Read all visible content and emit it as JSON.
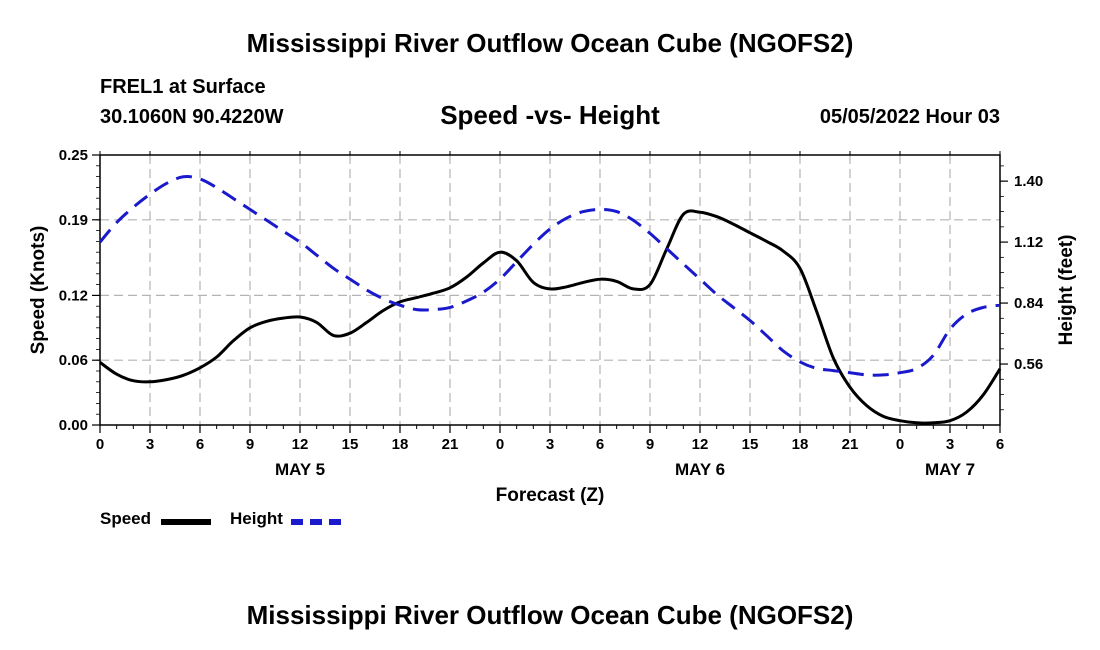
{
  "page": {
    "title_top": "Mississippi River Outflow Ocean Cube (NGOFS2)",
    "title_bottom": "Mississippi River Outflow Ocean Cube (NGOFS2)"
  },
  "header": {
    "station": "FREL1 at Surface",
    "coords": "30.1060N  90.4220W",
    "subtitle": "Speed -vs- Height",
    "datetime": "05/05/2022 Hour 03"
  },
  "legend": {
    "speed_label": "Speed",
    "height_label": "Height"
  },
  "colors": {
    "speed": "#000000",
    "height": "#1a1acc",
    "grid": "#b4b4b4"
  },
  "chart_data": {
    "type": "line",
    "xlabel": "Forecast (Z)",
    "ylabel_left": "Speed (Knots)",
    "ylabel_right": "Height (feet)",
    "x_range_hours": [
      0,
      54
    ],
    "x_ticks": [
      "0",
      "3",
      "6",
      "9",
      "12",
      "15",
      "18",
      "21",
      "0",
      "3",
      "6",
      "9",
      "12",
      "15",
      "18",
      "21",
      "0",
      "3",
      "6"
    ],
    "day_labels": [
      {
        "label": "MAY 5",
        "hour": 12
      },
      {
        "label": "MAY 6",
        "hour": 36
      },
      {
        "label": "MAY 7",
        "hour": 51
      }
    ],
    "y_left": {
      "range": [
        0,
        0.25
      ],
      "ticks": [
        0,
        0.06,
        0.12,
        0.19,
        0.25
      ],
      "tick_labels": [
        "0.00",
        "0.06",
        "0.12",
        "0.19",
        "0.25"
      ]
    },
    "y_right": {
      "range": [
        0.28,
        1.52
      ],
      "ticks": [
        0.56,
        0.84,
        1.12,
        1.4
      ],
      "tick_labels": [
        "0.56",
        "0.84",
        "1.12",
        "1.40"
      ]
    },
    "series": [
      {
        "name": "Speed",
        "axis": "left",
        "style": "solid",
        "x": [
          0,
          1,
          2,
          3,
          4,
          5,
          6,
          7,
          8,
          9,
          10,
          11,
          12,
          13,
          14,
          15,
          16,
          17,
          18,
          19,
          20,
          21,
          22,
          23,
          24,
          25,
          26,
          27,
          28,
          29,
          30,
          31,
          32,
          33,
          34,
          35,
          36,
          37,
          38,
          39,
          40,
          41,
          42,
          43,
          44,
          45,
          46,
          47,
          48,
          49,
          50,
          51,
          52,
          53,
          54
        ],
        "y": [
          0.058,
          0.047,
          0.041,
          0.04,
          0.042,
          0.046,
          0.053,
          0.063,
          0.078,
          0.09,
          0.096,
          0.099,
          0.1,
          0.095,
          0.083,
          0.085,
          0.095,
          0.106,
          0.114,
          0.118,
          0.122,
          0.127,
          0.137,
          0.15,
          0.16,
          0.152,
          0.132,
          0.126,
          0.128,
          0.132,
          0.135,
          0.133,
          0.126,
          0.13,
          0.163,
          0.195,
          0.197,
          0.193,
          0.186,
          0.178,
          0.17,
          0.161,
          0.145,
          0.105,
          0.062,
          0.035,
          0.018,
          0.008,
          0.004,
          0.002,
          0.002,
          0.004,
          0.012,
          0.028,
          0.052
        ]
      },
      {
        "name": "Height",
        "axis": "right",
        "style": "dashed",
        "x": [
          0,
          1,
          2,
          3,
          4,
          5,
          6,
          7,
          8,
          9,
          10,
          11,
          12,
          13,
          14,
          15,
          16,
          17,
          18,
          19,
          20,
          21,
          22,
          23,
          24,
          25,
          26,
          27,
          28,
          29,
          30,
          31,
          32,
          33,
          34,
          35,
          36,
          37,
          38,
          39,
          40,
          41,
          42,
          43,
          44,
          45,
          46,
          47,
          48,
          49,
          50,
          51,
          52,
          53,
          54
        ],
        "y": [
          1.12,
          1.21,
          1.28,
          1.34,
          1.39,
          1.42,
          1.41,
          1.37,
          1.32,
          1.27,
          1.22,
          1.17,
          1.12,
          1.06,
          1.0,
          0.95,
          0.9,
          0.86,
          0.83,
          0.81,
          0.81,
          0.82,
          0.85,
          0.89,
          0.95,
          1.03,
          1.11,
          1.18,
          1.23,
          1.26,
          1.27,
          1.26,
          1.22,
          1.16,
          1.09,
          1.02,
          0.95,
          0.88,
          0.82,
          0.76,
          0.69,
          0.62,
          0.57,
          0.54,
          0.53,
          0.52,
          0.51,
          0.51,
          0.52,
          0.54,
          0.6,
          0.72,
          0.79,
          0.82,
          0.83
        ]
      }
    ]
  }
}
